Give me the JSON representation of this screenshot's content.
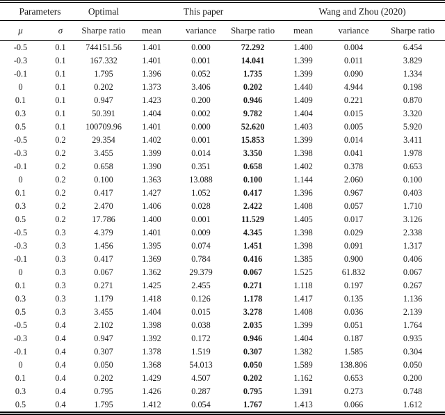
{
  "table": {
    "column_groups": [
      {
        "label": "Parameters",
        "span": 2
      },
      {
        "label": "Optimal",
        "span": 1
      },
      {
        "label": "This paper",
        "span": 3
      },
      {
        "label": "Wang and Zhou (2020)",
        "span": 3
      }
    ],
    "columns": [
      "μ",
      "σ",
      "Sharpe ratio",
      "mean",
      "variance",
      "Sharpe ratio",
      "mean",
      "variance",
      "Sharpe ratio"
    ],
    "bold_column_index": 5,
    "rows": [
      [
        "-0.5",
        "0.1",
        "744151.56",
        "1.401",
        "0.000",
        "72.292",
        "1.400",
        "0.004",
        "6.454"
      ],
      [
        "-0.3",
        "0.1",
        "167.332",
        "1.401",
        "0.001",
        "14.041",
        "1.399",
        "0.011",
        "3.829"
      ],
      [
        "-0.1",
        "0.1",
        "1.795",
        "1.396",
        "0.052",
        "1.735",
        "1.399",
        "0.090",
        "1.334"
      ],
      [
        "0",
        "0.1",
        "0.202",
        "1.373",
        "3.406",
        "0.202",
        "1.440",
        "4.944",
        "0.198"
      ],
      [
        "0.1",
        "0.1",
        "0.947",
        "1.423",
        "0.200",
        "0.946",
        "1.409",
        "0.221",
        "0.870"
      ],
      [
        "0.3",
        "0.1",
        "50.391",
        "1.404",
        "0.002",
        "9.782",
        "1.404",
        "0.015",
        "3.320"
      ],
      [
        "0.5",
        "0.1",
        "100709.96",
        "1.401",
        "0.000",
        "52.620",
        "1.403",
        "0.005",
        "5.920"
      ],
      [
        "-0.5",
        "0.2",
        "29.354",
        "1.402",
        "0.001",
        "15.853",
        "1.399",
        "0.014",
        "3.411"
      ],
      [
        "-0.3",
        "0.2",
        "3.455",
        "1.399",
        "0.014",
        "3.350",
        "1.398",
        "0.041",
        "1.978"
      ],
      [
        "-0.1",
        "0.2",
        "0.658",
        "1.390",
        "0.351",
        "0.658",
        "1.402",
        "0.378",
        "0.653"
      ],
      [
        "0",
        "0.2",
        "0.100",
        "1.363",
        "13.088",
        "0.100",
        "1.144",
        "2.060",
        "0.100"
      ],
      [
        "0.1",
        "0.2",
        "0.417",
        "1.427",
        "1.052",
        "0.417",
        "1.396",
        "0.967",
        "0.403"
      ],
      [
        "0.3",
        "0.2",
        "2.470",
        "1.406",
        "0.028",
        "2.422",
        "1.408",
        "0.057",
        "1.710"
      ],
      [
        "0.5",
        "0.2",
        "17.786",
        "1.400",
        "0.001",
        "11.529",
        "1.405",
        "0.017",
        "3.126"
      ],
      [
        "-0.5",
        "0.3",
        "4.379",
        "1.401",
        "0.009",
        "4.345",
        "1.398",
        "0.029",
        "2.338"
      ],
      [
        "-0.3",
        "0.3",
        "1.456",
        "1.395",
        "0.074",
        "1.451",
        "1.398",
        "0.091",
        "1.317"
      ],
      [
        "-0.1",
        "0.3",
        "0.417",
        "1.369",
        "0.784",
        "0.416",
        "1.385",
        "0.900",
        "0.406"
      ],
      [
        "0",
        "0.3",
        "0.067",
        "1.362",
        "29.379",
        "0.067",
        "1.525",
        "61.832",
        "0.067"
      ],
      [
        "0.1",
        "0.3",
        "0.271",
        "1.425",
        "2.455",
        "0.271",
        "1.118",
        "0.197",
        "0.267"
      ],
      [
        "0.3",
        "0.3",
        "1.179",
        "1.418",
        "0.126",
        "1.178",
        "1.417",
        "0.135",
        "1.136"
      ],
      [
        "0.5",
        "0.3",
        "3.455",
        "1.404",
        "0.015",
        "3.278",
        "1.408",
        "0.036",
        "2.139"
      ],
      [
        "-0.5",
        "0.4",
        "2.102",
        "1.398",
        "0.038",
        "2.035",
        "1.399",
        "0.051",
        "1.764"
      ],
      [
        "-0.3",
        "0.4",
        "0.947",
        "1.392",
        "0.172",
        "0.946",
        "1.404",
        "0.187",
        "0.935"
      ],
      [
        "-0.1",
        "0.4",
        "0.307",
        "1.378",
        "1.519",
        "0.307",
        "1.382",
        "1.585",
        "0.304"
      ],
      [
        "0",
        "0.4",
        "0.050",
        "1.368",
        "54.013",
        "0.050",
        "1.589",
        "138.806",
        "0.050"
      ],
      [
        "0.1",
        "0.4",
        "0.202",
        "1.429",
        "4.507",
        "0.202",
        "1.162",
        "0.653",
        "0.200"
      ],
      [
        "0.3",
        "0.4",
        "0.795",
        "1.426",
        "0.287",
        "0.795",
        "1.391",
        "0.273",
        "0.748"
      ],
      [
        "0.5",
        "0.4",
        "1.795",
        "1.412",
        "0.054",
        "1.767",
        "1.413",
        "0.066",
        "1.612"
      ]
    ]
  },
  "colors": {
    "text": "#1a1a1a",
    "background": "#ffffff",
    "rule": "#000000"
  }
}
